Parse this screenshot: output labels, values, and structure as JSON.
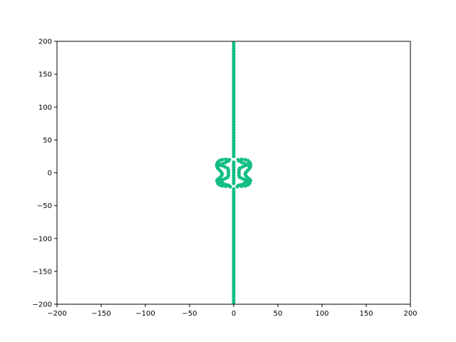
{
  "chart_data": {
    "type": "scatter",
    "title": "",
    "xlabel": "",
    "ylabel": "",
    "xlim": [
      -200,
      200
    ],
    "ylim": [
      -200,
      200
    ],
    "x_ticks": [
      -200,
      -150,
      -100,
      -50,
      0,
      50,
      100,
      150,
      200
    ],
    "y_ticks": [
      -200,
      -150,
      -100,
      -50,
      0,
      50,
      100,
      150,
      200
    ],
    "x_tick_labels": [
      "−200",
      "−150",
      "−100",
      "−50",
      "0",
      "50",
      "100",
      "150",
      "200"
    ],
    "y_tick_labels": [
      "−200",
      "−150",
      "−100",
      "−50",
      "0",
      "50",
      "100",
      "150",
      "200"
    ],
    "grid": false,
    "legend": "none",
    "series": [
      {
        "color": "#12bd85",
        "points": [
          [
            0,
            -197
          ],
          [
            0,
            -193
          ],
          [
            0,
            -189
          ],
          [
            0,
            -185
          ],
          [
            0,
            -181
          ],
          [
            0,
            -177
          ],
          [
            0,
            -173
          ],
          [
            0,
            -169
          ],
          [
            0,
            -165
          ],
          [
            0,
            -161
          ],
          [
            0,
            -157
          ],
          [
            0,
            -153
          ],
          [
            0,
            -149
          ],
          [
            0,
            -145
          ],
          [
            0,
            -141
          ],
          [
            0,
            -137
          ],
          [
            0,
            -133
          ],
          [
            0,
            -129
          ],
          [
            0,
            -125
          ],
          [
            0,
            -121
          ],
          [
            0,
            -117
          ],
          [
            0,
            -113
          ],
          [
            0,
            -109
          ],
          [
            0,
            -105
          ],
          [
            0,
            -101
          ],
          [
            0,
            -97
          ],
          [
            0,
            -93
          ],
          [
            0,
            -89
          ],
          [
            0,
            -85
          ],
          [
            0,
            -81
          ],
          [
            0,
            -77
          ],
          [
            0,
            -73
          ],
          [
            0,
            -69
          ],
          [
            0,
            -65
          ],
          [
            0,
            -61
          ],
          [
            0,
            -57
          ],
          [
            0,
            -53
          ],
          [
            0,
            -49
          ],
          [
            0,
            -45
          ],
          [
            0,
            -41
          ],
          [
            0,
            -37
          ],
          [
            0,
            -33
          ],
          [
            0,
            -29
          ],
          [
            0,
            -25
          ],
          [
            0,
            25
          ],
          [
            0,
            29
          ],
          [
            0,
            33
          ],
          [
            0,
            37
          ],
          [
            0,
            41
          ],
          [
            0,
            45
          ],
          [
            0,
            49
          ],
          [
            0,
            53
          ],
          [
            0,
            57
          ],
          [
            0,
            61
          ],
          [
            0,
            65
          ],
          [
            0,
            69
          ],
          [
            0,
            73
          ],
          [
            0,
            77
          ],
          [
            0,
            81
          ],
          [
            0,
            85
          ],
          [
            0,
            89
          ],
          [
            0,
            93
          ],
          [
            0,
            97
          ],
          [
            0,
            101
          ],
          [
            0,
            105
          ],
          [
            0,
            109
          ],
          [
            0,
            113
          ],
          [
            0,
            117
          ],
          [
            0,
            121
          ],
          [
            0,
            125
          ],
          [
            0,
            129
          ],
          [
            0,
            133
          ],
          [
            0,
            137
          ],
          [
            0,
            141
          ],
          [
            0,
            145
          ],
          [
            0,
            149
          ],
          [
            0,
            153
          ],
          [
            0,
            157
          ],
          [
            0,
            161
          ],
          [
            0,
            165
          ],
          [
            0,
            169
          ],
          [
            0,
            173
          ],
          [
            0,
            177
          ],
          [
            0,
            181
          ],
          [
            0,
            185
          ],
          [
            0,
            189
          ],
          [
            0,
            193
          ],
          [
            0,
            197
          ],
          [
            0,
            16
          ],
          [
            0,
            12
          ],
          [
            0,
            8
          ],
          [
            0,
            4
          ],
          [
            0,
            0
          ],
          [
            0,
            -4
          ],
          [
            0,
            -8
          ],
          [
            0,
            -12
          ],
          [
            0,
            -16
          ],
          [
            -5,
            20
          ],
          [
            -9,
            20.5
          ],
          [
            -13,
            20
          ],
          [
            -16,
            18.5
          ],
          [
            -18,
            16
          ],
          [
            -16,
            13
          ],
          [
            -13,
            11
          ],
          [
            -10,
            9
          ],
          [
            -7,
            7
          ],
          [
            -6,
            4
          ],
          [
            -6,
            0
          ],
          [
            -6,
            -4
          ],
          [
            -7,
            -7
          ],
          [
            -10,
            -9
          ],
          [
            -13,
            -11
          ],
          [
            -16,
            -13
          ],
          [
            -18,
            -16
          ],
          [
            -16,
            -18.5
          ],
          [
            -13,
            -20
          ],
          [
            -9,
            -20.5
          ],
          [
            -5,
            -20
          ],
          [
            -19,
            13
          ],
          [
            -19,
            10
          ],
          [
            -18,
            7
          ],
          [
            -16,
            4
          ],
          [
            -14,
            1
          ],
          [
            -13,
            -2
          ],
          [
            -14,
            -5
          ],
          [
            -16,
            -8
          ],
          [
            -18,
            -10
          ],
          [
            -19,
            -12
          ],
          [
            -17,
            -13
          ],
          [
            -15,
            -14
          ],
          [
            -12,
            -16
          ],
          [
            -9,
            -18
          ],
          [
            -6,
            -19
          ],
          [
            -4,
            -21
          ],
          [
            -17,
            11
          ],
          [
            -15,
            12
          ],
          [
            -12,
            14
          ],
          [
            -9,
            16
          ],
          [
            -6,
            18
          ],
          [
            5,
            20
          ],
          [
            9,
            20.5
          ],
          [
            13,
            20
          ],
          [
            16,
            18.5
          ],
          [
            18,
            16
          ],
          [
            16,
            13
          ],
          [
            13,
            11
          ],
          [
            10,
            9
          ],
          [
            7,
            7
          ],
          [
            6,
            4
          ],
          [
            6,
            0
          ],
          [
            6,
            -4
          ],
          [
            7,
            -7
          ],
          [
            10,
            -9
          ],
          [
            13,
            -11
          ],
          [
            16,
            -13
          ],
          [
            18,
            -16
          ],
          [
            16,
            -18.5
          ],
          [
            13,
            -20
          ],
          [
            9,
            -20.5
          ],
          [
            5,
            -20
          ],
          [
            19,
            13
          ],
          [
            19,
            10
          ],
          [
            18,
            7
          ],
          [
            16,
            4
          ],
          [
            14,
            1
          ],
          [
            13,
            -2
          ],
          [
            14,
            -5
          ],
          [
            16,
            -8
          ],
          [
            18,
            -10
          ],
          [
            19,
            -12
          ],
          [
            17,
            -13
          ],
          [
            15,
            -14
          ],
          [
            12,
            -16
          ],
          [
            9,
            -18
          ],
          [
            6,
            -19
          ],
          [
            4,
            -21
          ],
          [
            17,
            11
          ],
          [
            15,
            12
          ],
          [
            12,
            14
          ],
          [
            9,
            16
          ],
          [
            6,
            18
          ]
        ]
      }
    ]
  }
}
